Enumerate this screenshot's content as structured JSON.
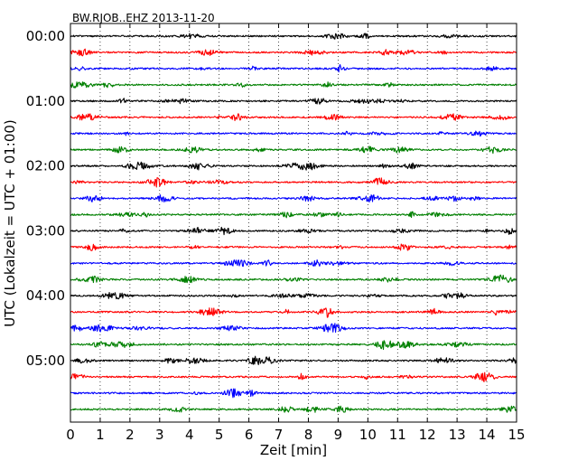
{
  "chart_data": {
    "type": "line",
    "title": "BW.RJOB..EHZ 2013-11-20",
    "xlabel": "Zeit  [min]",
    "ylabel": "UTC (Lokalzeit = UTC + 01:00)",
    "xlim": [
      0,
      15
    ],
    "x_ticks": [
      "0",
      "1",
      "2",
      "3",
      "4",
      "5",
      "6",
      "7",
      "8",
      "9",
      "10",
      "11",
      "12",
      "13",
      "14",
      "15"
    ],
    "y_ticks": [
      "00:00",
      "01:00",
      "02:00",
      "03:00",
      "04:00",
      "05:00"
    ],
    "rows_per_hour": 4,
    "row_count": 24,
    "minutes_per_row": 15,
    "vertical_grid": "dotted",
    "trace_colors": [
      "#000000",
      "#ff0000",
      "#0000ff",
      "#008000"
    ]
  }
}
